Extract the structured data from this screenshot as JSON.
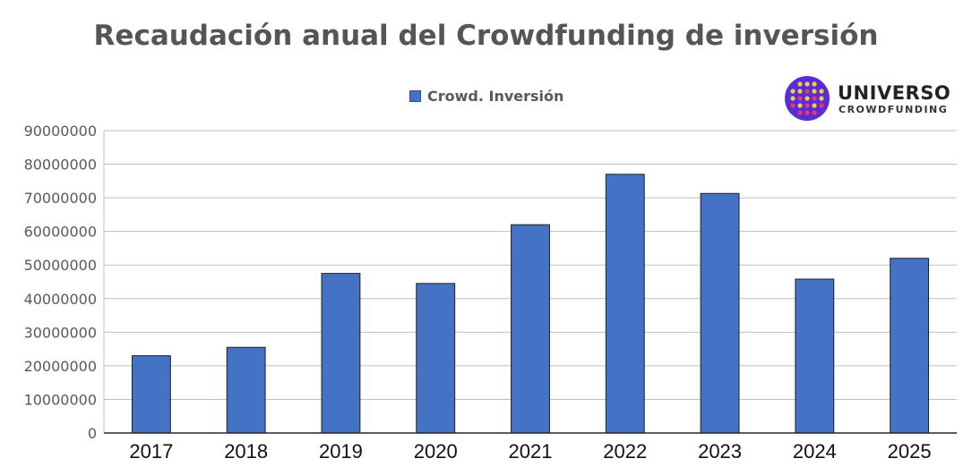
{
  "chart_data": {
    "type": "bar",
    "title": "Recaudación anual del Crowdfunding de inversión",
    "categories": [
      "2017",
      "2018",
      "2019",
      "2020",
      "2021",
      "2022",
      "2023",
      "2024",
      "2025"
    ],
    "series": [
      {
        "name": "Crowd. Inversión",
        "color": "#4472c4",
        "values": [
          23000000,
          25500000,
          47500000,
          44500000,
          62000000,
          77000000,
          71300000,
          45800000,
          52000000
        ]
      }
    ],
    "ylim": [
      0,
      90000000
    ],
    "yticks": [
      "0",
      "10000000",
      "20000000",
      "30000000",
      "40000000",
      "50000000",
      "60000000",
      "70000000",
      "80000000",
      "90000000"
    ],
    "grid": true,
    "legend_position": "top-center"
  },
  "logo": {
    "name": "UNIVERSO",
    "subtitle": "CROWDFUNDING",
    "colors": [
      "#5b2bd6",
      "#e8d23a",
      "#e33b6b"
    ]
  }
}
